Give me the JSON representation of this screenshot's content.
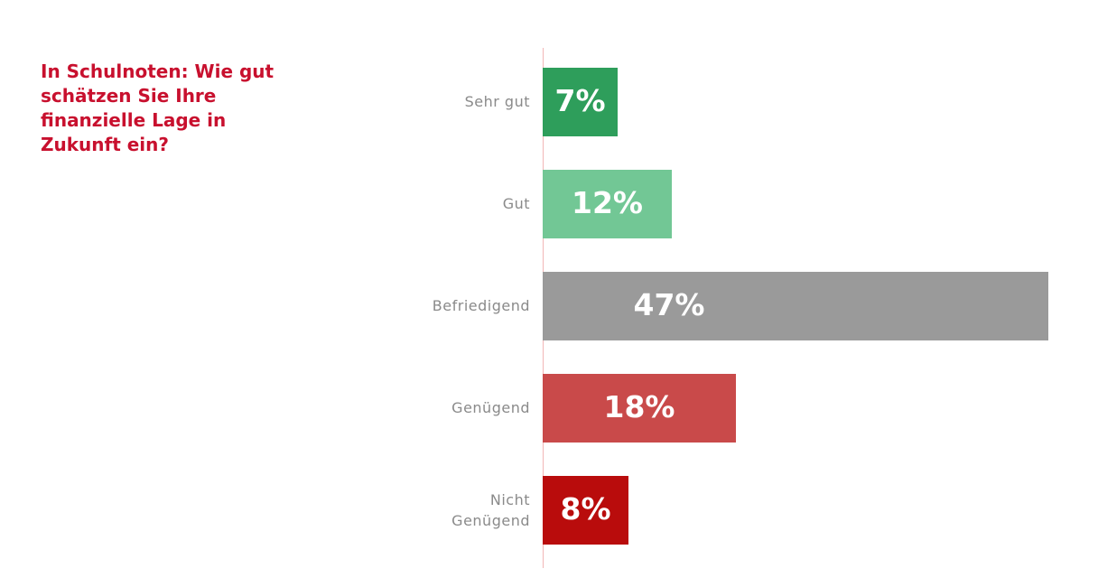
{
  "chart_data": {
    "type": "bar",
    "orientation": "horizontal",
    "title": "In Schulnoten:  Wie gut schätzen Sie Ihre finanzielle  Lage in Zukunft ein?",
    "categories": [
      "Sehr gut",
      "Gut",
      "Befriedigend",
      "Genügend",
      "Nicht Genügend"
    ],
    "values": [
      7,
      12,
      47,
      18,
      8
    ],
    "value_labels": [
      "7%",
      "12%",
      "47%",
      "18%",
      "8%"
    ],
    "bar_colors": [
      "#2e9e5b",
      "#72c795",
      "#9a9a9a",
      "#c94a4a",
      "#b90c0c"
    ],
    "title_color": "#c8102e",
    "category_label_color": "#8a8a8a",
    "value_label_color": "#ffffff",
    "axis_line_color": "#f2b6b6",
    "xlim": [
      0,
      47
    ],
    "grid": false,
    "legend": "none"
  }
}
